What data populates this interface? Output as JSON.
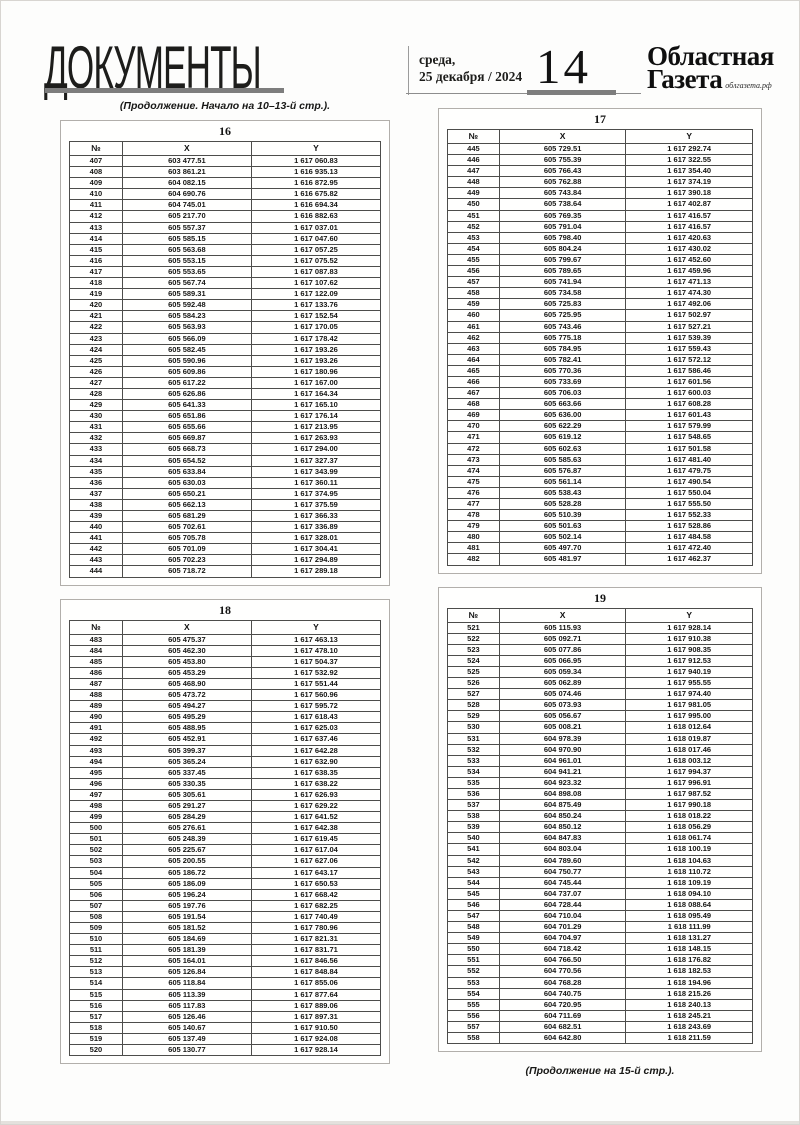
{
  "header": {
    "section_title": "ДОКУМЕНТЫ",
    "weekday": "среда,",
    "date": "25 декабря / 2024",
    "page_number": "14",
    "brand_line1": "Областная",
    "brand_line2": "Газета",
    "brand_site": "облгазета.рф"
  },
  "continuation_top": "(Продолжение. Начало на 10–13-й стр.).",
  "continuation_bottom": "(Продолжение на 15-й стр.).",
  "columns": [
    "№",
    "X",
    "Y"
  ],
  "tables": [
    {
      "number": "16",
      "rows": [
        [
          "407",
          "603 477.51",
          "1 617 060.83"
        ],
        [
          "408",
          "603 861.21",
          "1 616 935.13"
        ],
        [
          "409",
          "604 082.15",
          "1 616 872.95"
        ],
        [
          "410",
          "604 690.76",
          "1 616 675.82"
        ],
        [
          "411",
          "604 745.01",
          "1 616 694.34"
        ],
        [
          "412",
          "605 217.70",
          "1 616 882.63"
        ],
        [
          "413",
          "605 557.37",
          "1 617 037.01"
        ],
        [
          "414",
          "605 585.15",
          "1 617 047.60"
        ],
        [
          "415",
          "605 563.68",
          "1 617 057.25"
        ],
        [
          "416",
          "605 553.15",
          "1 617 075.52"
        ],
        [
          "417",
          "605 553.65",
          "1 617 087.83"
        ],
        [
          "418",
          "605 567.74",
          "1 617 107.62"
        ],
        [
          "419",
          "605 589.31",
          "1 617 122.09"
        ],
        [
          "420",
          "605 592.48",
          "1 617 133.76"
        ],
        [
          "421",
          "605 584.23",
          "1 617 152.54"
        ],
        [
          "422",
          "605 563.93",
          "1 617 170.05"
        ],
        [
          "423",
          "605 566.09",
          "1 617 178.42"
        ],
        [
          "424",
          "605 582.45",
          "1 617 193.26"
        ],
        [
          "425",
          "605 590.96",
          "1 617 193.26"
        ],
        [
          "426",
          "605 609.86",
          "1 617 180.96"
        ],
        [
          "427",
          "605 617.22",
          "1 617 167.00"
        ],
        [
          "428",
          "605 626.86",
          "1 617 164.34"
        ],
        [
          "429",
          "605 641.33",
          "1 617 165.10"
        ],
        [
          "430",
          "605 651.86",
          "1 617 176.14"
        ],
        [
          "431",
          "605 655.66",
          "1 617 213.95"
        ],
        [
          "432",
          "605 669.87",
          "1 617 263.93"
        ],
        [
          "433",
          "605 668.73",
          "1 617 294.00"
        ],
        [
          "434",
          "605 654.52",
          "1 617 327.37"
        ],
        [
          "435",
          "605 633.84",
          "1 617 343.99"
        ],
        [
          "436",
          "605 630.03",
          "1 617 360.11"
        ],
        [
          "437",
          "605 650.21",
          "1 617 374.95"
        ],
        [
          "438",
          "605 662.13",
          "1 617 375.59"
        ],
        [
          "439",
          "605 681.29",
          "1 617 366.33"
        ],
        [
          "440",
          "605 702.61",
          "1 617 336.89"
        ],
        [
          "441",
          "605 705.78",
          "1 617 328.01"
        ],
        [
          "442",
          "605 701.09",
          "1 617 304.41"
        ],
        [
          "443",
          "605 702.23",
          "1 617 294.89"
        ],
        [
          "444",
          "605 718.72",
          "1 617 289.18"
        ]
      ]
    },
    {
      "number": "17",
      "rows": [
        [
          "445",
          "605 729.51",
          "1 617 292.74"
        ],
        [
          "446",
          "605 755.39",
          "1 617 322.55"
        ],
        [
          "447",
          "605 766.43",
          "1 617 354.40"
        ],
        [
          "448",
          "605 762.88",
          "1 617 374.19"
        ],
        [
          "449",
          "605 743.84",
          "1 617 390.18"
        ],
        [
          "450",
          "605 738.64",
          "1 617 402.87"
        ],
        [
          "451",
          "605 769.35",
          "1 617 416.57"
        ],
        [
          "452",
          "605 791.04",
          "1 617 416.57"
        ],
        [
          "453",
          "605 798.40",
          "1 617 420.63"
        ],
        [
          "454",
          "605 804.24",
          "1 617 430.02"
        ],
        [
          "455",
          "605 799.67",
          "1 617 452.60"
        ],
        [
          "456",
          "605 789.65",
          "1 617 459.96"
        ],
        [
          "457",
          "605 741.94",
          "1 617 471.13"
        ],
        [
          "458",
          "605 734.58",
          "1 617 474.30"
        ],
        [
          "459",
          "605 725.83",
          "1 617 492.06"
        ],
        [
          "460",
          "605 725.95",
          "1 617 502.97"
        ],
        [
          "461",
          "605 743.46",
          "1 617 527.21"
        ],
        [
          "462",
          "605 775.18",
          "1 617 539.39"
        ],
        [
          "463",
          "605 784.95",
          "1 617 559.43"
        ],
        [
          "464",
          "605 782.41",
          "1 617 572.12"
        ],
        [
          "465",
          "605 770.36",
          "1 617 586.46"
        ],
        [
          "466",
          "605 733.69",
          "1 617 601.56"
        ],
        [
          "467",
          "605 706.03",
          "1 617 600.03"
        ],
        [
          "468",
          "605 663.66",
          "1 617 608.28"
        ],
        [
          "469",
          "605 636.00",
          "1 617 601.43"
        ],
        [
          "470",
          "605 622.29",
          "1 617 579.99"
        ],
        [
          "471",
          "605 619.12",
          "1 617 548.65"
        ],
        [
          "472",
          "605 602.63",
          "1 617 501.58"
        ],
        [
          "473",
          "605 585.63",
          "1 617 481.40"
        ],
        [
          "474",
          "605 576.87",
          "1 617 479.75"
        ],
        [
          "475",
          "605 561.14",
          "1 617 490.54"
        ],
        [
          "476",
          "605 538.43",
          "1 617 550.04"
        ],
        [
          "477",
          "605 528.28",
          "1 617 555.50"
        ],
        [
          "478",
          "605 510.39",
          "1 617 552.33"
        ],
        [
          "479",
          "605 501.63",
          "1 617 528.86"
        ],
        [
          "480",
          "605 502.14",
          "1 617 484.58"
        ],
        [
          "481",
          "605 497.70",
          "1 617 472.40"
        ],
        [
          "482",
          "605 481.97",
          "1 617 462.37"
        ]
      ]
    },
    {
      "number": "18",
      "rows": [
        [
          "483",
          "605 475.37",
          "1 617 463.13"
        ],
        [
          "484",
          "605 462.30",
          "1 617 478.10"
        ],
        [
          "485",
          "605 453.80",
          "1 617 504.37"
        ],
        [
          "486",
          "605 453.29",
          "1 617 532.92"
        ],
        [
          "487",
          "605 468.90",
          "1 617 551.44"
        ],
        [
          "488",
          "605 473.72",
          "1 617 560.96"
        ],
        [
          "489",
          "605 494.27",
          "1 617 595.72"
        ],
        [
          "490",
          "605 495.29",
          "1 617 618.43"
        ],
        [
          "491",
          "605 488.95",
          "1 617 625.03"
        ],
        [
          "492",
          "605 452.91",
          "1 617 637.46"
        ],
        [
          "493",
          "605 399.37",
          "1 617 642.28"
        ],
        [
          "494",
          "605 365.24",
          "1 617 632.90"
        ],
        [
          "495",
          "605 337.45",
          "1 617 638.35"
        ],
        [
          "496",
          "605 330.35",
          "1 617 638.22"
        ],
        [
          "497",
          "605 305.61",
          "1 617 626.93"
        ],
        [
          "498",
          "605 291.27",
          "1 617 629.22"
        ],
        [
          "499",
          "605 284.29",
          "1 617 641.52"
        ],
        [
          "500",
          "605 276.61",
          "1 617 642.38"
        ],
        [
          "501",
          "605 248.39",
          "1 617 619.45"
        ],
        [
          "502",
          "605 225.67",
          "1 617 617.04"
        ],
        [
          "503",
          "605 200.55",
          "1 617 627.06"
        ],
        [
          "504",
          "605 186.72",
          "1 617 643.17"
        ],
        [
          "505",
          "605 186.09",
          "1 617 650.53"
        ],
        [
          "506",
          "605 196.24",
          "1 617 668.42"
        ],
        [
          "507",
          "605 197.76",
          "1 617 682.25"
        ],
        [
          "508",
          "605 191.54",
          "1 617 740.49"
        ],
        [
          "509",
          "605 181.52",
          "1 617 780.96"
        ],
        [
          "510",
          "605 184.69",
          "1 617 821.31"
        ],
        [
          "511",
          "605 181.39",
          "1 617 831.71"
        ],
        [
          "512",
          "605 164.01",
          "1 617 846.56"
        ],
        [
          "513",
          "605 126.84",
          "1 617 848.84"
        ],
        [
          "514",
          "605 118.84",
          "1 617 855.06"
        ],
        [
          "515",
          "605 113.39",
          "1 617 877.64"
        ],
        [
          "516",
          "605 117.83",
          "1 617 889.06"
        ],
        [
          "517",
          "605 126.46",
          "1 617 897.31"
        ],
        [
          "518",
          "605 140.67",
          "1 617 910.50"
        ],
        [
          "519",
          "605 137.49",
          "1 617 924.08"
        ],
        [
          "520",
          "605 130.77",
          "1 617 928.14"
        ]
      ]
    },
    {
      "number": "19",
      "rows": [
        [
          "521",
          "605 115.93",
          "1 617 928.14"
        ],
        [
          "522",
          "605 092.71",
          "1 617 910.38"
        ],
        [
          "523",
          "605 077.86",
          "1 617 908.35"
        ],
        [
          "524",
          "605 066.95",
          "1 617 912.53"
        ],
        [
          "525",
          "605 059.34",
          "1 617 940.19"
        ],
        [
          "526",
          "605 062.89",
          "1 617 955.55"
        ],
        [
          "527",
          "605 074.46",
          "1 617 974.40"
        ],
        [
          "528",
          "605 073.93",
          "1 617 981.05"
        ],
        [
          "529",
          "605 056.67",
          "1 617 995.00"
        ],
        [
          "530",
          "605 008.21",
          "1 618 012.64"
        ],
        [
          "531",
          "604 978.39",
          "1 618 019.87"
        ],
        [
          "532",
          "604 970.90",
          "1 618 017.46"
        ],
        [
          "533",
          "604 961.01",
          "1 618 003.12"
        ],
        [
          "534",
          "604 941.21",
          "1 617 994.37"
        ],
        [
          "535",
          "604 923.32",
          "1 617 996.91"
        ],
        [
          "536",
          "604 898.08",
          "1 617 987.52"
        ],
        [
          "537",
          "604 875.49",
          "1 617 990.18"
        ],
        [
          "538",
          "604 850.24",
          "1 618 018.22"
        ],
        [
          "539",
          "604 850.12",
          "1 618 056.29"
        ],
        [
          "540",
          "604 847.83",
          "1 618 061.74"
        ],
        [
          "541",
          "604 803.04",
          "1 618 100.19"
        ],
        [
          "542",
          "604 789.60",
          "1 618 104.63"
        ],
        [
          "543",
          "604 750.77",
          "1 618 110.72"
        ],
        [
          "544",
          "604 745.44",
          "1 618 109.19"
        ],
        [
          "545",
          "604 737.07",
          "1 618 094.10"
        ],
        [
          "546",
          "604 728.44",
          "1 618 088.64"
        ],
        [
          "547",
          "604 710.04",
          "1 618 095.49"
        ],
        [
          "548",
          "604 701.29",
          "1 618 111.99"
        ],
        [
          "549",
          "604 704.97",
          "1 618 131.27"
        ],
        [
          "550",
          "604 718.42",
          "1 618 148.15"
        ],
        [
          "551",
          "604 766.50",
          "1 618 176.82"
        ],
        [
          "552",
          "604 770.56",
          "1 618 182.53"
        ],
        [
          "553",
          "604 768.28",
          "1 618 194.96"
        ],
        [
          "554",
          "604 740.75",
          "1 618 215.26"
        ],
        [
          "555",
          "604 720.95",
          "1 618 240.13"
        ],
        [
          "556",
          "604 711.69",
          "1 618 245.21"
        ],
        [
          "557",
          "604 682.51",
          "1 618 243.69"
        ],
        [
          "558",
          "604 642.80",
          "1 618 211.59"
        ]
      ]
    }
  ]
}
